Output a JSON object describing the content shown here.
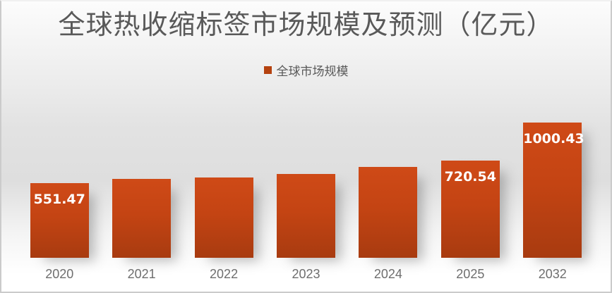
{
  "title": "全球热收缩标签市场规模及预测（亿元）",
  "legend": {
    "label": "全球市场规模",
    "marker_color": "#b5420f"
  },
  "chart_data": {
    "type": "bar",
    "title": "全球热收缩标签市场规模及预测（亿元）",
    "legend_entries": [
      "全球市场规模"
    ],
    "legend_position": "top-center",
    "categories": [
      "2020",
      "2021",
      "2022",
      "2023",
      "2024",
      "2025",
      "2032"
    ],
    "series": [
      {
        "name": "全球市场规模",
        "values": [
          551.47,
          583,
          595,
          622,
          674,
          720.54,
          1000.43
        ],
        "data_labels": [
          "551.47",
          null,
          null,
          null,
          null,
          "720.54",
          "1000.43"
        ]
      }
    ],
    "ylim": [
      0,
      1042
    ],
    "grid": false,
    "axes_visible": false,
    "colors": {
      "bar_gradient_top": "#cf4a17",
      "bar_gradient_bottom": "#a83b10",
      "data_label_text": "#ffffff",
      "axis_tick_text": "#6e6e6e",
      "title_text": "#595959"
    }
  }
}
